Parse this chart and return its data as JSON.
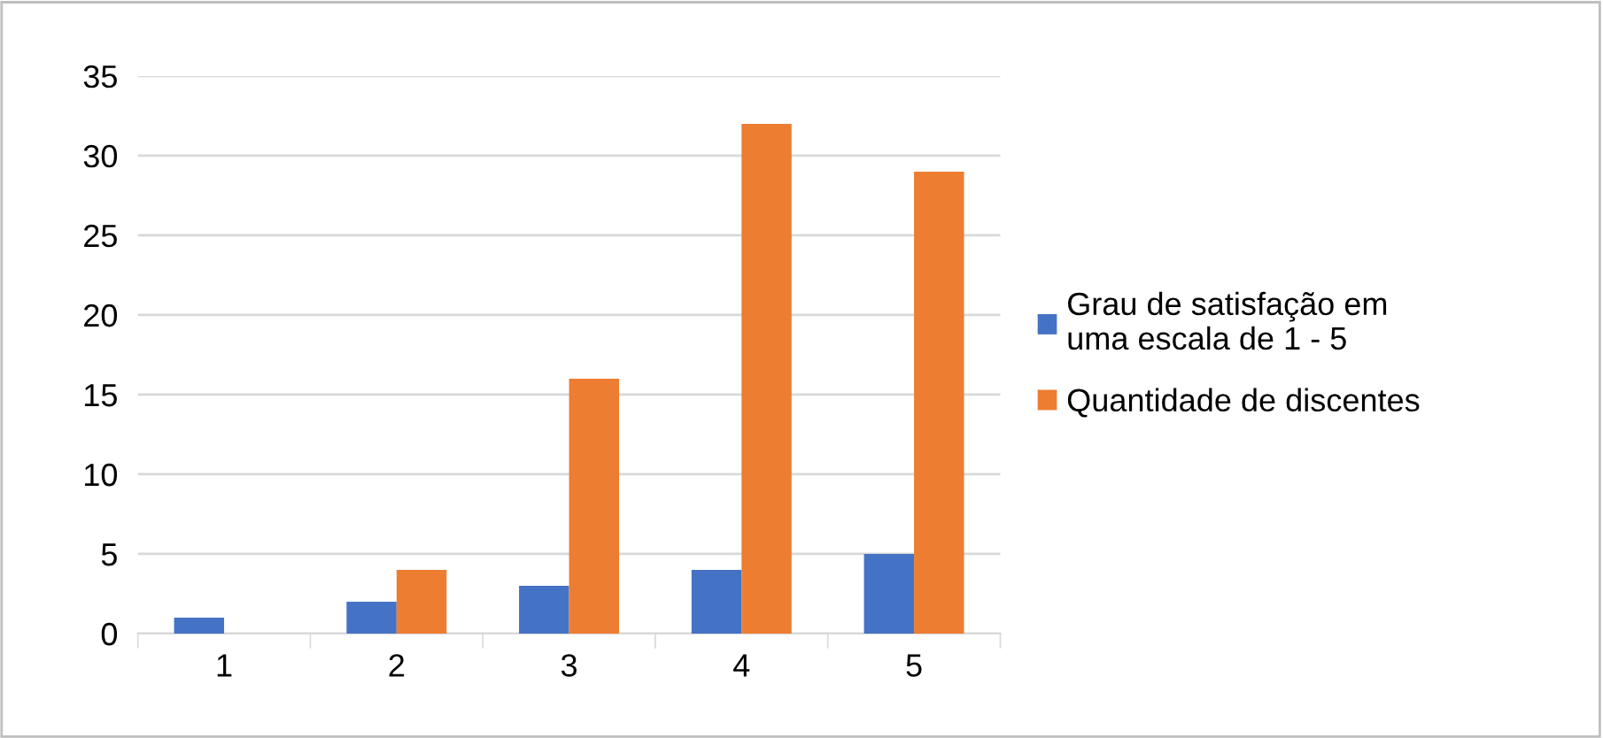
{
  "chart_data": {
    "type": "bar",
    "categories": [
      "1",
      "2",
      "3",
      "4",
      "5"
    ],
    "series": [
      {
        "name": "Grau de satisfação em\numa escala de 1 - 5",
        "color": "#4472c4",
        "values": [
          1,
          2,
          3,
          4,
          5
        ]
      },
      {
        "name": "Quantidade de discentes",
        "color": "#ed7d31",
        "values": [
          0,
          4,
          16,
          32,
          29
        ]
      }
    ],
    "ylim": [
      0,
      35
    ],
    "yticks": [
      0,
      5,
      10,
      15,
      20,
      25,
      30,
      35
    ],
    "grid": "y",
    "legend": "right"
  }
}
